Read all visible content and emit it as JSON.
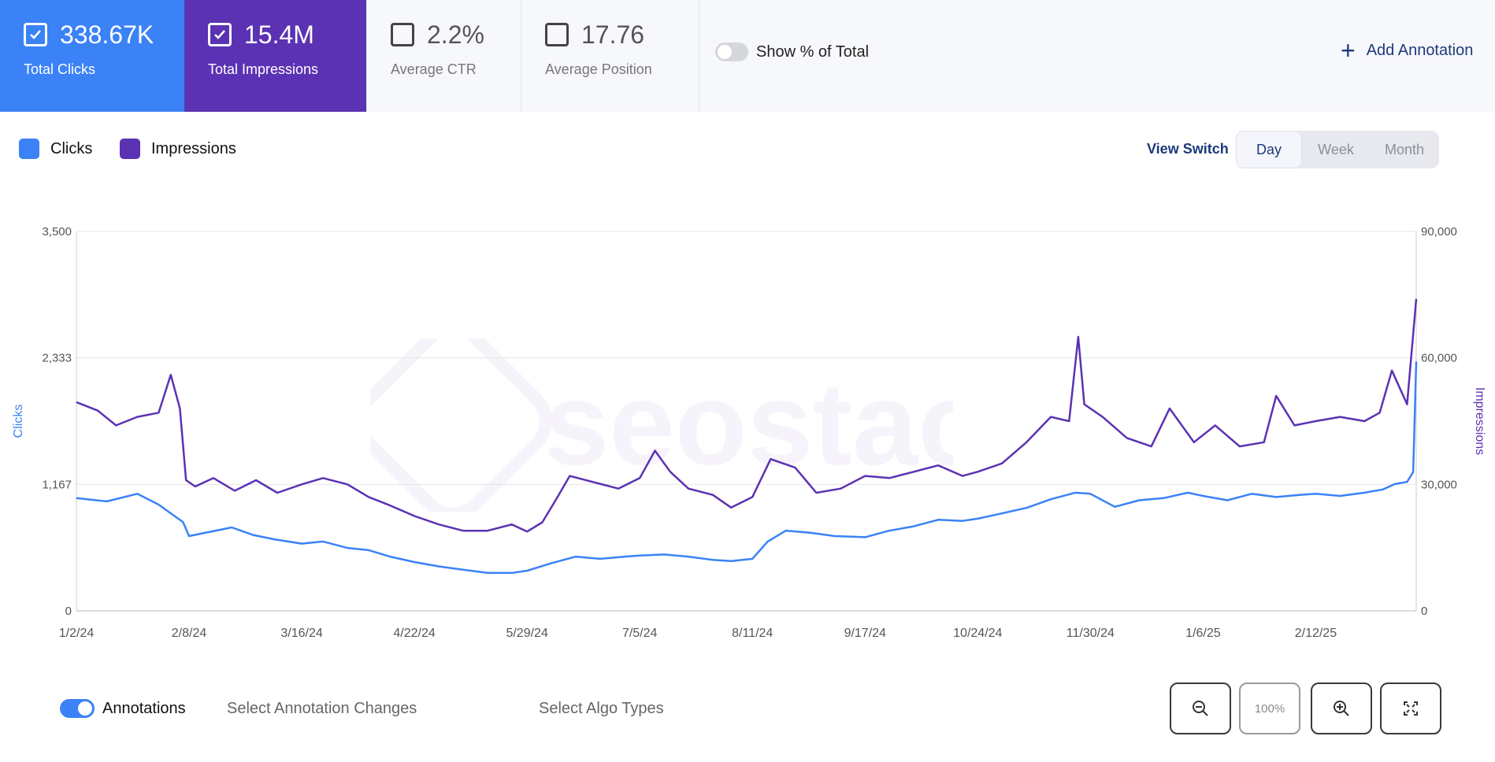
{
  "metrics": {
    "clicks": {
      "value": "338.67K",
      "label": "Total Clicks",
      "checked": true,
      "color": "#3b82f6"
    },
    "impressions": {
      "value": "15.4M",
      "label": "Total Impressions",
      "checked": true,
      "color": "#5b32b3"
    },
    "ctr": {
      "value": "2.2%",
      "label": "Average CTR",
      "checked": false
    },
    "position": {
      "value": "17.76",
      "label": "Average Position",
      "checked": false
    }
  },
  "show_pct_toggle": {
    "label": "Show % of Total",
    "on": false
  },
  "add_annotation": {
    "label": "Add Annotation",
    "icon": "plus-icon"
  },
  "legend": [
    {
      "label": "Clicks",
      "color": "#3b82f6"
    },
    {
      "label": "Impressions",
      "color": "#5b32b3"
    }
  ],
  "view_switch": {
    "label": "View Switch",
    "options": [
      "Day",
      "Week",
      "Month"
    ],
    "selected": "Day"
  },
  "watermark": "seostack",
  "chart_data": {
    "type": "line",
    "xlabel": "",
    "ylabel_left": "Clicks",
    "ylabel_right": "Impressions",
    "x_ticks": [
      "1/2/24",
      "2/8/24",
      "3/16/24",
      "4/22/24",
      "5/29/24",
      "7/5/24",
      "8/11/24",
      "9/17/24",
      "10/24/24",
      "11/30/24",
      "1/6/25",
      "2/12/25"
    ],
    "y_left_ticks": [
      "0",
      "1,167",
      "2,333",
      "3,500"
    ],
    "y_right_ticks": [
      "0",
      "30,000",
      "60,000",
      "90,000"
    ],
    "ylim_left": [
      0,
      3500
    ],
    "ylim_right": [
      0,
      90000
    ],
    "x_start": "2024-01-02",
    "x_end": "2025-03-17",
    "grid": true,
    "series": [
      {
        "name": "Clicks",
        "axis": "left",
        "color": "#3b82f6",
        "points": [
          [
            "2024-01-02",
            1040
          ],
          [
            "2024-01-12",
            1010
          ],
          [
            "2024-01-22",
            1080
          ],
          [
            "2024-01-29",
            980
          ],
          [
            "2024-02-02",
            900
          ],
          [
            "2024-02-06",
            820
          ],
          [
            "2024-02-08",
            690
          ],
          [
            "2024-02-15",
            730
          ],
          [
            "2024-02-22",
            770
          ],
          [
            "2024-02-29",
            700
          ],
          [
            "2024-03-07",
            660
          ],
          [
            "2024-03-16",
            620
          ],
          [
            "2024-03-23",
            640
          ],
          [
            "2024-03-31",
            580
          ],
          [
            "2024-04-07",
            560
          ],
          [
            "2024-04-14",
            500
          ],
          [
            "2024-04-22",
            450
          ],
          [
            "2024-04-30",
            410
          ],
          [
            "2024-05-08",
            380
          ],
          [
            "2024-05-16",
            350
          ],
          [
            "2024-05-24",
            350
          ],
          [
            "2024-05-29",
            370
          ],
          [
            "2024-06-06",
            440
          ],
          [
            "2024-06-14",
            500
          ],
          [
            "2024-06-22",
            480
          ],
          [
            "2024-06-30",
            500
          ],
          [
            "2024-07-05",
            510
          ],
          [
            "2024-07-13",
            520
          ],
          [
            "2024-07-21",
            500
          ],
          [
            "2024-07-29",
            470
          ],
          [
            "2024-08-04",
            460
          ],
          [
            "2024-08-11",
            480
          ],
          [
            "2024-08-16",
            640
          ],
          [
            "2024-08-22",
            740
          ],
          [
            "2024-08-30",
            720
          ],
          [
            "2024-09-07",
            690
          ],
          [
            "2024-09-17",
            680
          ],
          [
            "2024-09-25",
            740
          ],
          [
            "2024-10-03",
            780
          ],
          [
            "2024-10-11",
            840
          ],
          [
            "2024-10-19",
            830
          ],
          [
            "2024-10-24",
            850
          ],
          [
            "2024-11-01",
            900
          ],
          [
            "2024-11-09",
            950
          ],
          [
            "2024-11-17",
            1030
          ],
          [
            "2024-11-25",
            1090
          ],
          [
            "2024-11-30",
            1080
          ],
          [
            "2024-12-08",
            960
          ],
          [
            "2024-12-16",
            1020
          ],
          [
            "2024-12-24",
            1040
          ],
          [
            "2025-01-01",
            1090
          ],
          [
            "2025-01-06",
            1060
          ],
          [
            "2025-01-14",
            1020
          ],
          [
            "2025-01-22",
            1080
          ],
          [
            "2025-01-30",
            1050
          ],
          [
            "2025-02-07",
            1070
          ],
          [
            "2025-02-12",
            1080
          ],
          [
            "2025-02-20",
            1060
          ],
          [
            "2025-02-28",
            1090
          ],
          [
            "2025-03-06",
            1120
          ],
          [
            "2025-03-10",
            1170
          ],
          [
            "2025-03-14",
            1190
          ],
          [
            "2025-03-16",
            1280
          ],
          [
            "2025-03-17",
            2300
          ]
        ]
      },
      {
        "name": "Impressions",
        "axis": "right",
        "color": "#5b32b3",
        "points": [
          [
            "2024-01-02",
            49500
          ],
          [
            "2024-01-09",
            47500
          ],
          [
            "2024-01-15",
            44000
          ],
          [
            "2024-01-22",
            46000
          ],
          [
            "2024-01-29",
            47000
          ],
          [
            "2024-02-02",
            56000
          ],
          [
            "2024-02-05",
            48000
          ],
          [
            "2024-02-07",
            31000
          ],
          [
            "2024-02-10",
            29500
          ],
          [
            "2024-02-16",
            31500
          ],
          [
            "2024-02-23",
            28500
          ],
          [
            "2024-03-01",
            31000
          ],
          [
            "2024-03-08",
            28000
          ],
          [
            "2024-03-16",
            30000
          ],
          [
            "2024-03-23",
            31500
          ],
          [
            "2024-03-31",
            30000
          ],
          [
            "2024-04-07",
            27000
          ],
          [
            "2024-04-14",
            25000
          ],
          [
            "2024-04-22",
            22500
          ],
          [
            "2024-04-30",
            20500
          ],
          [
            "2024-05-08",
            19000
          ],
          [
            "2024-05-16",
            19000
          ],
          [
            "2024-05-24",
            20500
          ],
          [
            "2024-05-29",
            18800
          ],
          [
            "2024-06-03",
            21000
          ],
          [
            "2024-06-08",
            27000
          ],
          [
            "2024-06-12",
            32000
          ],
          [
            "2024-06-20",
            30500
          ],
          [
            "2024-06-28",
            29000
          ],
          [
            "2024-07-05",
            31500
          ],
          [
            "2024-07-10",
            38000
          ],
          [
            "2024-07-15",
            33000
          ],
          [
            "2024-07-21",
            29000
          ],
          [
            "2024-07-29",
            27500
          ],
          [
            "2024-08-04",
            24500
          ],
          [
            "2024-08-11",
            27000
          ],
          [
            "2024-08-17",
            36000
          ],
          [
            "2024-08-25",
            34000
          ],
          [
            "2024-09-01",
            28000
          ],
          [
            "2024-09-09",
            29000
          ],
          [
            "2024-09-17",
            32000
          ],
          [
            "2024-09-25",
            31500
          ],
          [
            "2024-10-03",
            33000
          ],
          [
            "2024-10-11",
            34500
          ],
          [
            "2024-10-19",
            32000
          ],
          [
            "2024-10-24",
            33000
          ],
          [
            "2024-11-01",
            35000
          ],
          [
            "2024-11-09",
            40000
          ],
          [
            "2024-11-17",
            46000
          ],
          [
            "2024-11-23",
            45000
          ],
          [
            "2024-11-26",
            65000
          ],
          [
            "2024-11-28",
            49000
          ],
          [
            "2024-12-04",
            46000
          ],
          [
            "2024-12-12",
            41000
          ],
          [
            "2024-12-20",
            39000
          ],
          [
            "2024-12-26",
            48000
          ],
          [
            "2025-01-03",
            40000
          ],
          [
            "2025-01-10",
            44000
          ],
          [
            "2025-01-18",
            39000
          ],
          [
            "2025-01-26",
            40000
          ],
          [
            "2025-01-30",
            51000
          ],
          [
            "2025-02-05",
            44000
          ],
          [
            "2025-02-12",
            45000
          ],
          [
            "2025-02-20",
            46000
          ],
          [
            "2025-02-28",
            45000
          ],
          [
            "2025-03-05",
            47000
          ],
          [
            "2025-03-09",
            57000
          ],
          [
            "2025-03-14",
            49000
          ],
          [
            "2025-03-17",
            74000
          ]
        ]
      }
    ]
  },
  "annotations_toggle": {
    "label": "Annotations",
    "on": true
  },
  "select_annotation_changes": "Select Annotation Changes",
  "select_algo_types": "Select Algo Types",
  "zoom": {
    "zoom_out_icon": "zoom-out-icon",
    "level": "100%",
    "zoom_in_icon": "zoom-in-icon",
    "fullscreen_icon": "fullscreen-icon"
  }
}
